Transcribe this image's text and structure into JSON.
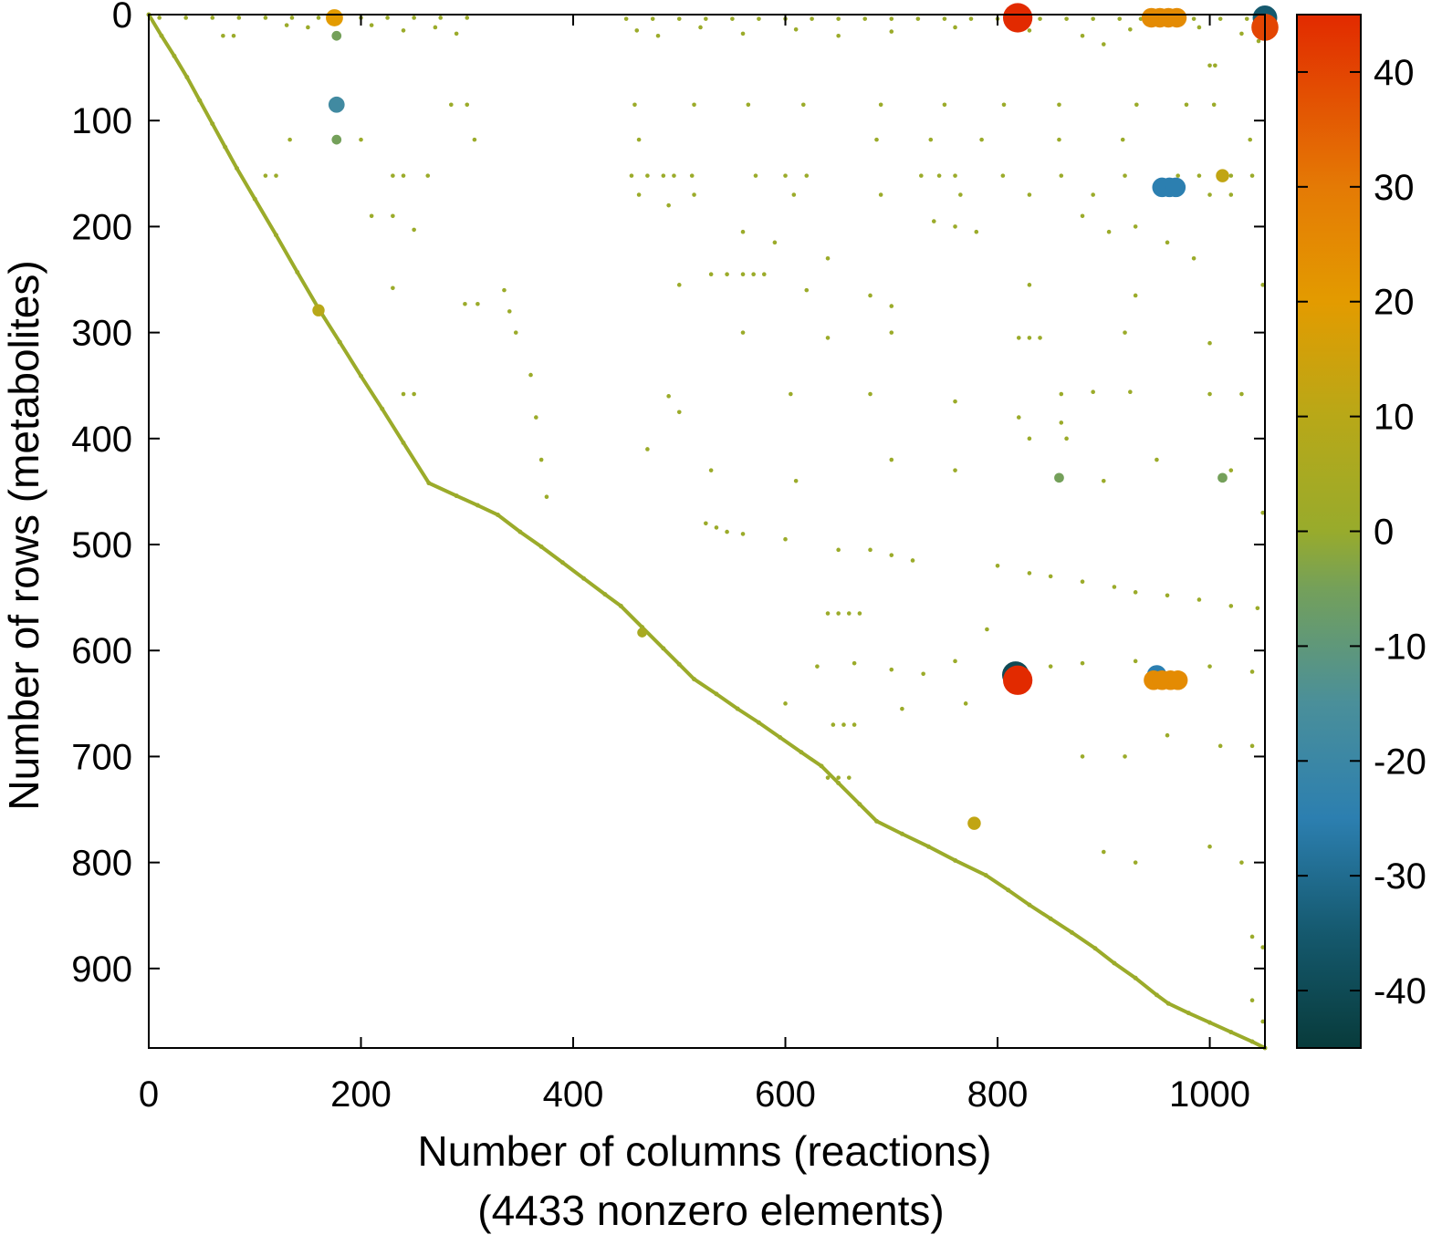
{
  "chart_data": {
    "type": "scatter",
    "xlabel": "Number of columns (reactions)",
    "subtitle": "(4433 nonzero elements)",
    "ylabel": "Number of rows (metabolites)",
    "xlim": [
      0,
      1052
    ],
    "ylim": [
      975,
      0
    ],
    "y_inverted": true,
    "grid": false,
    "xticks": [
      0,
      200,
      400,
      600,
      800,
      1000
    ],
    "yticks": [
      0,
      100,
      200,
      300,
      400,
      500,
      600,
      700,
      800,
      900
    ],
    "colorbar": {
      "range": [
        -45,
        45
      ],
      "ticks": [
        40,
        30,
        20,
        10,
        0,
        -10,
        -20,
        -30,
        -40
      ],
      "colormap": [
        {
          "value": -45,
          "color": "#083b3b"
        },
        {
          "value": -35,
          "color": "#15596e"
        },
        {
          "value": -25,
          "color": "#2c7fb0"
        },
        {
          "value": -15,
          "color": "#4a8f9a"
        },
        {
          "value": -5,
          "color": "#74a05a"
        },
        {
          "value": 0,
          "color": "#98ab2c"
        },
        {
          "value": 10,
          "color": "#b8a818"
        },
        {
          "value": 20,
          "color": "#e39b00"
        },
        {
          "value": 30,
          "color": "#e47a05"
        },
        {
          "value": 45,
          "color": "#e22a00"
        }
      ]
    },
    "diagonal": [
      [
        0,
        0
      ],
      [
        12,
        20
      ],
      [
        24,
        39
      ],
      [
        36,
        59
      ],
      [
        48,
        81
      ],
      [
        60,
        103
      ],
      [
        72,
        125
      ],
      [
        83,
        145
      ],
      [
        100,
        174
      ],
      [
        120,
        208
      ],
      [
        140,
        243
      ],
      [
        161,
        279
      ],
      [
        180,
        309
      ],
      [
        200,
        341
      ],
      [
        220,
        372
      ],
      [
        240,
        404
      ],
      [
        264,
        442
      ],
      [
        290,
        454
      ],
      [
        310,
        463
      ],
      [
        329,
        472
      ],
      [
        350,
        488
      ],
      [
        370,
        502
      ],
      [
        390,
        517
      ],
      [
        410,
        532
      ],
      [
        430,
        547
      ],
      [
        445,
        558
      ],
      [
        465,
        578
      ],
      [
        485,
        598
      ],
      [
        500,
        613
      ],
      [
        514,
        627
      ],
      [
        535,
        641
      ],
      [
        555,
        655
      ],
      [
        575,
        668
      ],
      [
        595,
        682
      ],
      [
        615,
        696
      ],
      [
        634,
        709
      ],
      [
        650,
        725
      ],
      [
        670,
        745
      ],
      [
        686,
        761
      ],
      [
        710,
        773
      ],
      [
        735,
        785
      ],
      [
        760,
        798
      ],
      [
        789,
        812
      ],
      [
        810,
        826
      ],
      [
        830,
        840
      ],
      [
        850,
        853
      ],
      [
        870,
        866
      ],
      [
        892,
        881
      ],
      [
        910,
        895
      ],
      [
        930,
        909
      ],
      [
        950,
        925
      ],
      [
        961,
        933
      ],
      [
        980,
        942
      ],
      [
        1000,
        951
      ],
      [
        1020,
        960
      ],
      [
        1040,
        969
      ],
      [
        1052,
        975
      ]
    ],
    "points": [
      [
        10,
        3,
        1
      ],
      [
        35,
        3,
        1
      ],
      [
        60,
        3,
        1
      ],
      [
        85,
        3,
        1
      ],
      [
        110,
        3,
        1
      ],
      [
        135,
        3,
        1
      ],
      [
        160,
        3,
        1
      ],
      [
        200,
        3,
        1
      ],
      [
        225,
        3,
        1
      ],
      [
        250,
        3,
        1
      ],
      [
        275,
        3,
        1
      ],
      [
        300,
        3,
        1
      ],
      [
        450,
        4,
        1
      ],
      [
        475,
        4,
        1
      ],
      [
        500,
        4,
        1
      ],
      [
        525,
        4,
        1
      ],
      [
        550,
        4,
        1
      ],
      [
        575,
        4,
        1
      ],
      [
        600,
        4,
        1
      ],
      [
        625,
        4,
        1
      ],
      [
        650,
        4,
        1
      ],
      [
        675,
        4,
        1
      ],
      [
        700,
        4,
        1
      ],
      [
        725,
        4,
        1
      ],
      [
        750,
        4,
        1
      ],
      [
        775,
        4,
        1
      ],
      [
        800,
        4,
        1
      ],
      [
        840,
        4,
        1
      ],
      [
        865,
        4,
        1
      ],
      [
        890,
        4,
        1
      ],
      [
        915,
        4,
        1
      ],
      [
        935,
        4,
        1
      ],
      [
        985,
        4,
        1
      ],
      [
        1010,
        4,
        1
      ],
      [
        1035,
        4,
        1
      ],
      [
        70,
        20,
        1
      ],
      [
        80,
        20,
        1
      ],
      [
        130,
        10,
        1
      ],
      [
        150,
        12,
        1
      ],
      [
        210,
        10,
        1
      ],
      [
        240,
        15,
        1
      ],
      [
        270,
        12,
        1
      ],
      [
        290,
        18,
        1
      ],
      [
        460,
        15,
        1
      ],
      [
        480,
        20,
        1
      ],
      [
        520,
        12,
        1
      ],
      [
        560,
        18,
        1
      ],
      [
        610,
        14,
        1
      ],
      [
        650,
        20,
        1
      ],
      [
        700,
        16,
        1
      ],
      [
        760,
        12,
        1
      ],
      [
        830,
        15,
        1
      ],
      [
        880,
        20,
        1
      ],
      [
        925,
        14,
        1
      ],
      [
        990,
        12,
        1
      ],
      [
        1030,
        18,
        1
      ],
      [
        1046,
        25,
        1
      ],
      [
        900,
        28,
        1
      ],
      [
        1000,
        48,
        1
      ],
      [
        1005,
        48,
        1
      ],
      [
        178,
        85,
        1
      ],
      [
        285,
        85,
        1
      ],
      [
        300,
        85,
        1
      ],
      [
        458,
        85,
        1
      ],
      [
        514,
        85,
        1
      ],
      [
        565,
        85,
        1
      ],
      [
        617,
        85,
        1
      ],
      [
        690,
        85,
        1
      ],
      [
        750,
        85,
        1
      ],
      [
        806,
        85,
        1
      ],
      [
        858,
        85,
        1
      ],
      [
        931,
        85,
        1
      ],
      [
        978,
        85,
        1
      ],
      [
        1004,
        85,
        1
      ],
      [
        133,
        118,
        1
      ],
      [
        200,
        118,
        1
      ],
      [
        307,
        118,
        1
      ],
      [
        462,
        118,
        1
      ],
      [
        686,
        118,
        1
      ],
      [
        737,
        118,
        1
      ],
      [
        785,
        118,
        1
      ],
      [
        858,
        118,
        1
      ],
      [
        918,
        118,
        1
      ],
      [
        1038,
        118,
        1
      ],
      [
        110,
        152,
        1
      ],
      [
        120,
        152,
        1
      ],
      [
        230,
        152,
        1
      ],
      [
        240,
        152,
        1
      ],
      [
        263,
        152,
        1
      ],
      [
        455,
        152,
        1
      ],
      [
        470,
        152,
        1
      ],
      [
        485,
        152,
        1
      ],
      [
        495,
        152,
        1
      ],
      [
        512,
        152,
        1
      ],
      [
        572,
        152,
        1
      ],
      [
        600,
        152,
        1
      ],
      [
        620,
        152,
        1
      ],
      [
        728,
        152,
        1
      ],
      [
        745,
        152,
        1
      ],
      [
        760,
        152,
        1
      ],
      [
        805,
        152,
        1
      ],
      [
        860,
        152,
        1
      ],
      [
        920,
        152,
        1
      ],
      [
        970,
        152,
        1
      ],
      [
        990,
        152,
        1
      ],
      [
        1020,
        152,
        1
      ],
      [
        1040,
        152,
        1
      ],
      [
        462,
        170,
        1
      ],
      [
        514,
        170,
        1
      ],
      [
        608,
        170,
        1
      ],
      [
        690,
        170,
        1
      ],
      [
        765,
        170,
        1
      ],
      [
        830,
        170,
        1
      ],
      [
        890,
        170,
        1
      ],
      [
        970,
        170,
        1
      ],
      [
        1000,
        170,
        1
      ],
      [
        1020,
        170,
        1
      ],
      [
        210,
        190,
        1
      ],
      [
        230,
        190,
        1
      ],
      [
        250,
        203,
        1
      ],
      [
        490,
        180,
        1
      ],
      [
        560,
        205,
        1
      ],
      [
        590,
        215,
        1
      ],
      [
        640,
        230,
        1
      ],
      [
        740,
        195,
        1
      ],
      [
        760,
        200,
        1
      ],
      [
        780,
        205,
        1
      ],
      [
        880,
        190,
        1
      ],
      [
        905,
        205,
        1
      ],
      [
        930,
        200,
        1
      ],
      [
        960,
        215,
        1
      ],
      [
        985,
        230,
        1
      ],
      [
        530,
        245,
        1
      ],
      [
        545,
        245,
        1
      ],
      [
        560,
        245,
        1
      ],
      [
        570,
        245,
        1
      ],
      [
        580,
        245,
        1
      ],
      [
        500,
        255,
        1
      ],
      [
        620,
        260,
        1
      ],
      [
        680,
        265,
        1
      ],
      [
        700,
        275,
        1
      ],
      [
        830,
        255,
        1
      ],
      [
        930,
        265,
        1
      ],
      [
        1050,
        255,
        1
      ],
      [
        335,
        260,
        1
      ],
      [
        340,
        280,
        1
      ],
      [
        346,
        300,
        1
      ],
      [
        360,
        340,
        1
      ],
      [
        365,
        380,
        1
      ],
      [
        370,
        420,
        1
      ],
      [
        375,
        455,
        1
      ],
      [
        298,
        273,
        1
      ],
      [
        310,
        273,
        1
      ],
      [
        230,
        258,
        1
      ],
      [
        820,
        305,
        1
      ],
      [
        830,
        305,
        1
      ],
      [
        840,
        305,
        1
      ],
      [
        560,
        300,
        1
      ],
      [
        640,
        305,
        1
      ],
      [
        700,
        300,
        1
      ],
      [
        920,
        300,
        1
      ],
      [
        1000,
        310,
        1
      ],
      [
        240,
        358,
        1
      ],
      [
        250,
        358,
        1
      ],
      [
        490,
        360,
        1
      ],
      [
        500,
        375,
        1
      ],
      [
        605,
        358,
        1
      ],
      [
        680,
        358,
        1
      ],
      [
        760,
        365,
        1
      ],
      [
        860,
        358,
        1
      ],
      [
        890,
        356,
        1
      ],
      [
        925,
        356,
        1
      ],
      [
        1000,
        358,
        1
      ],
      [
        1030,
        358,
        1
      ],
      [
        820,
        380,
        1
      ],
      [
        830,
        400,
        1
      ],
      [
        860,
        385,
        1
      ],
      [
        865,
        400,
        1
      ],
      [
        470,
        410,
        1
      ],
      [
        530,
        430,
        1
      ],
      [
        610,
        440,
        1
      ],
      [
        700,
        420,
        1
      ],
      [
        760,
        430,
        1
      ],
      [
        900,
        440,
        1
      ],
      [
        950,
        420,
        1
      ],
      [
        1020,
        430,
        1
      ],
      [
        525,
        480,
        1
      ],
      [
        535,
        484,
        1
      ],
      [
        545,
        488,
        1
      ],
      [
        560,
        490,
        1
      ],
      [
        600,
        495,
        1
      ],
      [
        650,
        505,
        1
      ],
      [
        680,
        505,
        1
      ],
      [
        700,
        510,
        1
      ],
      [
        720,
        515,
        1
      ],
      [
        800,
        520,
        1
      ],
      [
        830,
        527,
        1
      ],
      [
        850,
        530,
        1
      ],
      [
        880,
        535,
        1
      ],
      [
        910,
        540,
        1
      ],
      [
        930,
        545,
        1
      ],
      [
        960,
        548,
        1
      ],
      [
        990,
        552,
        1
      ],
      [
        1020,
        558,
        1
      ],
      [
        1045,
        560,
        1
      ],
      [
        640,
        565,
        1
      ],
      [
        650,
        565,
        1
      ],
      [
        660,
        565,
        1
      ],
      [
        670,
        565,
        1
      ],
      [
        1050,
        470,
        1
      ],
      [
        630,
        615,
        1
      ],
      [
        665,
        612,
        1
      ],
      [
        700,
        618,
        1
      ],
      [
        730,
        622,
        1
      ],
      [
        760,
        610,
        1
      ],
      [
        790,
        580,
        1
      ],
      [
        850,
        615,
        1
      ],
      [
        880,
        612,
        1
      ],
      [
        930,
        610,
        1
      ],
      [
        1000,
        615,
        1
      ],
      [
        1040,
        620,
        1
      ],
      [
        645,
        670,
        1
      ],
      [
        655,
        670,
        1
      ],
      [
        665,
        670,
        1
      ],
      [
        600,
        650,
        1
      ],
      [
        710,
        655,
        1
      ],
      [
        770,
        650,
        1
      ],
      [
        880,
        700,
        1
      ],
      [
        920,
        700,
        1
      ],
      [
        960,
        680,
        1
      ],
      [
        1010,
        690,
        1
      ],
      [
        1040,
        690,
        1
      ],
      [
        640,
        720,
        1
      ],
      [
        650,
        720,
        1
      ],
      [
        660,
        720,
        1
      ],
      [
        900,
        790,
        1
      ],
      [
        930,
        800,
        1
      ],
      [
        1000,
        785,
        1
      ],
      [
        1030,
        800,
        1
      ],
      [
        1040,
        870,
        1
      ],
      [
        1050,
        880,
        1
      ],
      [
        1040,
        930,
        1
      ],
      [
        1050,
        950,
        1
      ],
      [
        175,
        3,
        20
      ],
      [
        177,
        20,
        -5
      ],
      [
        177,
        85,
        -18
      ],
      [
        177,
        118,
        -5
      ],
      [
        160,
        279,
        10
      ],
      [
        465,
        583,
        5
      ],
      [
        819,
        3,
        45
      ],
      [
        819,
        628,
        45
      ],
      [
        817,
        623,
        -40
      ],
      [
        945,
        3,
        25
      ],
      [
        953,
        3,
        25
      ],
      [
        961,
        3,
        25
      ],
      [
        969,
        3,
        25
      ],
      [
        955,
        163,
        -25
      ],
      [
        962,
        163,
        -25
      ],
      [
        968,
        163,
        -25
      ],
      [
        950,
        623,
        -25
      ],
      [
        947,
        628,
        25
      ],
      [
        955,
        628,
        25
      ],
      [
        963,
        628,
        25
      ],
      [
        970,
        628,
        25
      ],
      [
        1052,
        3,
        -35
      ],
      [
        1052,
        12,
        40
      ],
      [
        1012,
        152,
        12
      ],
      [
        1012,
        437,
        -5
      ],
      [
        858,
        437,
        -5
      ],
      [
        778,
        763,
        12
      ]
    ]
  }
}
